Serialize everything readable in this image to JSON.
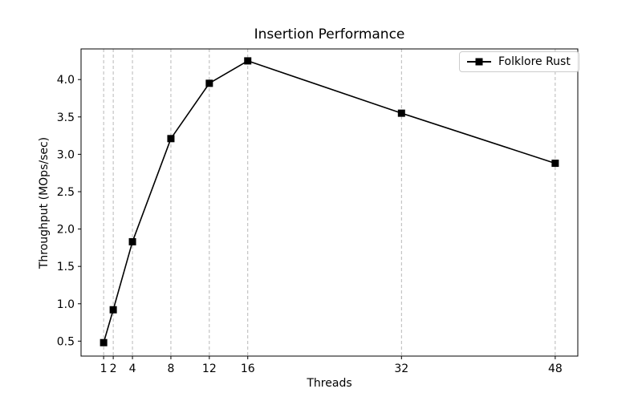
{
  "window": {
    "background": "#ffffff",
    "text_color": "#000000"
  },
  "chart_data": {
    "type": "line",
    "title": "Insertion Performance",
    "xlabel": "Threads",
    "ylabel": "Throughput (MOps/sec)",
    "x": [
      1,
      2,
      4,
      8,
      12,
      16,
      32,
      48
    ],
    "series": [
      {
        "name": "Folklore Rust",
        "color": "#000000",
        "marker": "square",
        "values": [
          0.48,
          0.92,
          1.83,
          3.21,
          3.95,
          4.25,
          3.55,
          2.88
        ]
      }
    ],
    "xticks": [
      1,
      2,
      4,
      8,
      12,
      16,
      32,
      48
    ],
    "yticks": [
      0.5,
      1.0,
      1.5,
      2.0,
      2.5,
      3.0,
      3.5,
      4.0
    ],
    "xlim": [
      -1.35,
      50.35
    ],
    "ylim": [
      0.3,
      4.41
    ],
    "grid": "vertical-dashed-only",
    "grid_color": "#b0b0b0",
    "axis_color": "#000000",
    "legend_position": "upper right"
  }
}
